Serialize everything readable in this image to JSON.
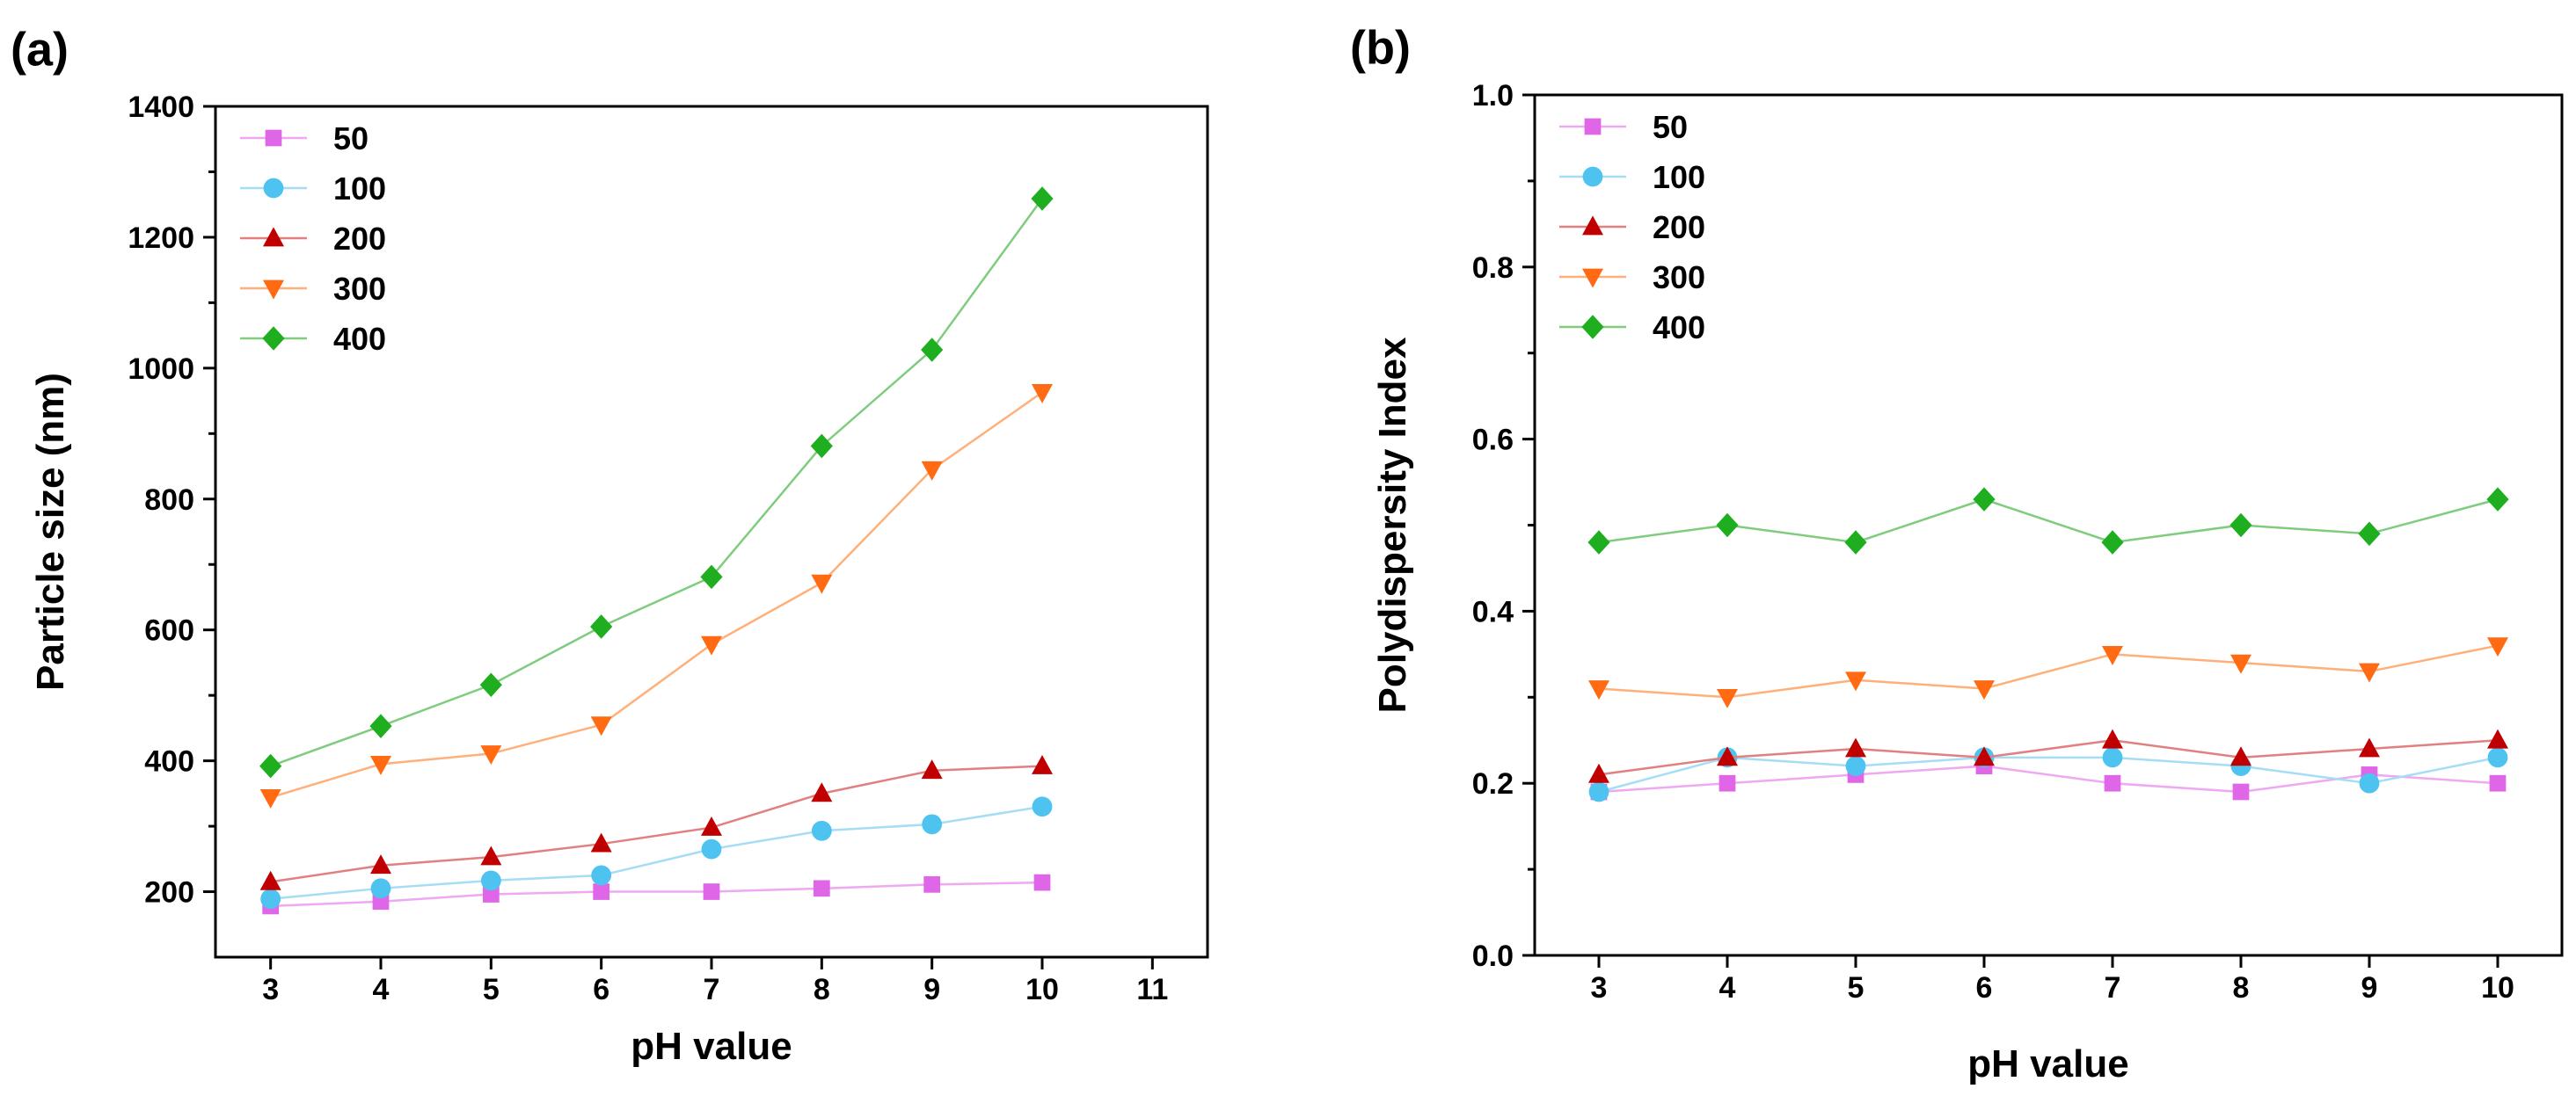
{
  "chart_data": [
    {
      "panel": "(a)",
      "type": "line",
      "xlabel": "pH value",
      "ylabel": "Particle size (nm)",
      "xlim": [
        2.5,
        11.5
      ],
      "ylim": [
        100,
        1400
      ],
      "xticks": [
        3,
        4,
        5,
        6,
        7,
        8,
        9,
        10,
        11
      ],
      "yticks": [
        200,
        400,
        600,
        800,
        1000,
        1200,
        1400
      ],
      "x": [
        3,
        4,
        5,
        6,
        7,
        8,
        9,
        10
      ],
      "legend_position": "top-left",
      "series": [
        {
          "name": "50",
          "marker": "square",
          "marker_color": "#E066E8",
          "line_color": "#EFA8F2",
          "values": [
            178,
            185,
            196,
            200,
            200,
            205,
            211,
            214
          ]
        },
        {
          "name": "100",
          "marker": "circle",
          "marker_color": "#4FC3F0",
          "line_color": "#A5DDF5",
          "values": [
            189,
            205,
            217,
            225,
            265,
            293,
            303,
            330
          ]
        },
        {
          "name": "200",
          "marker": "triangle-up",
          "marker_color": "#C00000",
          "line_color": "#E08080",
          "values": [
            215,
            240,
            253,
            273,
            298,
            350,
            385,
            392
          ]
        },
        {
          "name": "300",
          "marker": "triangle-down",
          "marker_color": "#FF6A13",
          "line_color": "#FFB07A",
          "values": [
            344,
            395,
            411,
            455,
            578,
            672,
            845,
            963
          ]
        },
        {
          "name": "400",
          "marker": "diamond",
          "marker_color": "#1FAE1F",
          "line_color": "#7FCC7F",
          "values": [
            392,
            453,
            516,
            605,
            681,
            881,
            1028,
            1259
          ]
        }
      ]
    },
    {
      "panel": "(b)",
      "type": "line",
      "xlabel": "pH value",
      "ylabel": "Polydispersity Index",
      "xlim": [
        2.5,
        10.5
      ],
      "ylim": [
        0.0,
        1.0
      ],
      "xticks": [
        3,
        4,
        5,
        6,
        7,
        8,
        9,
        10
      ],
      "yticks": [
        0.0,
        0.2,
        0.4,
        0.6,
        0.8,
        1.0
      ],
      "ytick_labels": [
        "0.0",
        "0.2",
        "0.4",
        "0.6",
        "0.8",
        "1.0"
      ],
      "x": [
        3,
        4,
        5,
        6,
        7,
        8,
        9,
        10
      ],
      "legend_position": "top-left",
      "series": [
        {
          "name": "50",
          "marker": "square",
          "marker_color": "#E066E8",
          "line_color": "#EFA8F2",
          "values": [
            0.19,
            0.2,
            0.21,
            0.22,
            0.2,
            0.19,
            0.21,
            0.2
          ]
        },
        {
          "name": "100",
          "marker": "circle",
          "marker_color": "#4FC3F0",
          "line_color": "#A5DDF5",
          "values": [
            0.19,
            0.23,
            0.22,
            0.23,
            0.23,
            0.22,
            0.2,
            0.23
          ]
        },
        {
          "name": "200",
          "marker": "triangle-up",
          "marker_color": "#C00000",
          "line_color": "#E08080",
          "values": [
            0.21,
            0.23,
            0.24,
            0.23,
            0.25,
            0.23,
            0.24,
            0.25
          ]
        },
        {
          "name": "300",
          "marker": "triangle-down",
          "marker_color": "#FF6A13",
          "line_color": "#FFB07A",
          "values": [
            0.31,
            0.3,
            0.32,
            0.31,
            0.35,
            0.34,
            0.33,
            0.36
          ]
        },
        {
          "name": "400",
          "marker": "diamond",
          "marker_color": "#1FAE1F",
          "line_color": "#7FCC7F",
          "values": [
            0.48,
            0.5,
            0.48,
            0.53,
            0.48,
            0.5,
            0.49,
            0.53
          ]
        }
      ]
    }
  ]
}
